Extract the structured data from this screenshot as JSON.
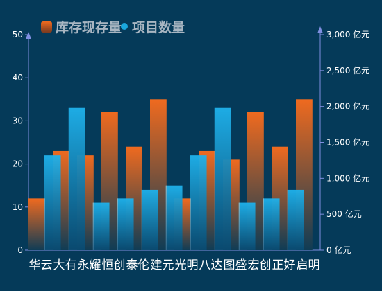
{
  "chart_data": {
    "type": "bar",
    "categories": [
      "华云",
      "大有",
      "永耀",
      "恒创",
      "泰伦",
      "建元",
      "光明",
      "八达",
      "图盛",
      "宏创",
      "正好",
      "启明"
    ],
    "series": [
      {
        "name": "库存现存量",
        "axis": "left",
        "values": [
          12,
          23,
          22,
          32,
          24,
          35,
          12,
          23,
          21,
          32,
          24,
          35
        ],
        "color": "#e8601e"
      },
      {
        "name": "项目数量",
        "axis": "right",
        "values": [
          0,
          1320,
          1980,
          660,
          720,
          840,
          900,
          1320,
          1980,
          660,
          720,
          840
        ],
        "color": "#1aa7dd"
      }
    ],
    "left_axis": {
      "min": 0,
      "max": 50,
      "ticks": [
        "0",
        "10",
        "20",
        "30",
        "40",
        "50"
      ]
    },
    "right_axis": {
      "min": 0,
      "max": 3000,
      "ticks": [
        "0 亿元",
        "500 亿元",
        "1,000 亿元",
        "1,500 亿元",
        "2,000 亿元",
        "2,500 亿元",
        "3,000 亿元"
      ]
    },
    "grid": false,
    "legend_position": "top-left"
  }
}
